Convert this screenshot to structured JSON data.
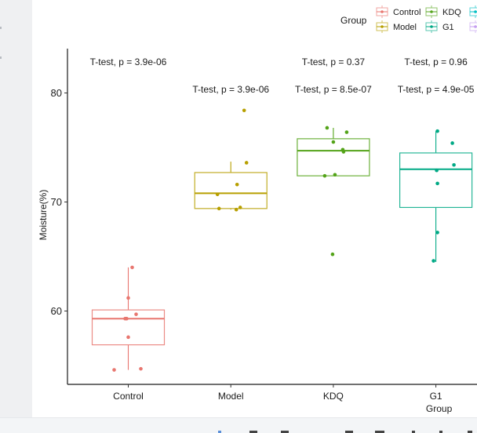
{
  "chart_data": {
    "type": "boxplot",
    "title": "",
    "xlabel": "Group",
    "ylabel": "Moisture(%)",
    "ylim": [
      53.5,
      84.0
    ],
    "yticks": [
      60,
      70,
      80
    ],
    "ytick_labels": [
      "60",
      "70",
      "80"
    ],
    "grid": false,
    "categories": [
      "Control",
      "Model",
      "KDQ",
      "G1"
    ],
    "legend": {
      "title": "Group",
      "placement": "top-right",
      "entries": [
        {
          "label": "Control",
          "color": "#E8766F"
        },
        {
          "label": "Model",
          "color": "#B79F00"
        },
        {
          "label": "KDQ",
          "color": "#53A318"
        },
        {
          "label": "G1",
          "color": "#00A985"
        },
        {
          "label": "",
          "color": "#00BFC4"
        },
        {
          "label": "",
          "color": "#C59EF0"
        }
      ]
    },
    "series": [
      {
        "name": "Control",
        "color": "#E8766F",
        "box": {
          "whisker_low": 54.6,
          "q1": 56.9,
          "median": 59.3,
          "q3": 60.1,
          "whisker_high": 64.0
        },
        "points": [
          {
            "jitter": 0.05,
            "y": 64.0
          },
          {
            "jitter": 0.0,
            "y": 61.2
          },
          {
            "jitter": 0.1,
            "y": 59.7
          },
          {
            "jitter": -0.04,
            "y": 59.3
          },
          {
            "jitter": -0.02,
            "y": 59.3
          },
          {
            "jitter": 0.0,
            "y": 57.6
          },
          {
            "jitter": -0.18,
            "y": 54.6
          },
          {
            "jitter": 0.16,
            "y": 54.7
          }
        ]
      },
      {
        "name": "Model",
        "color": "#B79F00",
        "box": {
          "whisker_low": 69.3,
          "q1": 69.4,
          "median": 70.8,
          "q3": 72.7,
          "whisker_high": 73.7
        },
        "points": [
          {
            "jitter": 0.17,
            "y": 78.4
          },
          {
            "jitter": 0.2,
            "y": 73.6
          },
          {
            "jitter": 0.08,
            "y": 71.6
          },
          {
            "jitter": -0.17,
            "y": 70.7
          },
          {
            "jitter": -0.15,
            "y": 69.4
          },
          {
            "jitter": 0.07,
            "y": 69.3
          },
          {
            "jitter": 0.12,
            "y": 69.5
          }
        ]
      },
      {
        "name": "KDQ",
        "color": "#53A318",
        "box": {
          "whisker_low": 72.4,
          "q1": 72.4,
          "median": 74.7,
          "q3": 75.8,
          "whisker_high": 76.8
        },
        "points": [
          {
            "jitter": -0.08,
            "y": 76.8
          },
          {
            "jitter": 0.17,
            "y": 76.4
          },
          {
            "jitter": 0.0,
            "y": 75.5
          },
          {
            "jitter": 0.12,
            "y": 74.8
          },
          {
            "jitter": 0.13,
            "y": 74.6
          },
          {
            "jitter": -0.11,
            "y": 72.4
          },
          {
            "jitter": 0.02,
            "y": 72.5
          },
          {
            "jitter": -0.01,
            "y": 65.2
          }
        ]
      },
      {
        "name": "G1",
        "color": "#00A985",
        "box": {
          "whisker_low": 64.5,
          "q1": 69.5,
          "median": 73.0,
          "q3": 74.5,
          "whisker_high": 76.5
        },
        "points": [
          {
            "jitter": 0.02,
            "y": 76.5
          },
          {
            "jitter": 0.21,
            "y": 75.4
          },
          {
            "jitter": 0.23,
            "y": 73.4
          },
          {
            "jitter": 0.01,
            "y": 72.9
          },
          {
            "jitter": 0.02,
            "y": 71.7
          },
          {
            "jitter": 0.02,
            "y": 67.2
          },
          {
            "jitter": -0.03,
            "y": 64.6
          }
        ]
      }
    ],
    "annotations": [
      {
        "category": "Control",
        "row": "upper",
        "text": "T-test, p = 3.9e-06"
      },
      {
        "category": "Model",
        "row": "lower",
        "text": "T-test, p = 3.9e-06"
      },
      {
        "category": "KDQ",
        "row": "upper",
        "text": "T-test, p = 0.37"
      },
      {
        "category": "KDQ",
        "row": "lower",
        "text": "T-test, p = 8.5e-07"
      },
      {
        "category": "G1",
        "row": "upper",
        "text": "T-test, p = 0.96"
      },
      {
        "category": "G1",
        "row": "lower",
        "text": "T-test, p = 4.9e-05"
      }
    ]
  }
}
